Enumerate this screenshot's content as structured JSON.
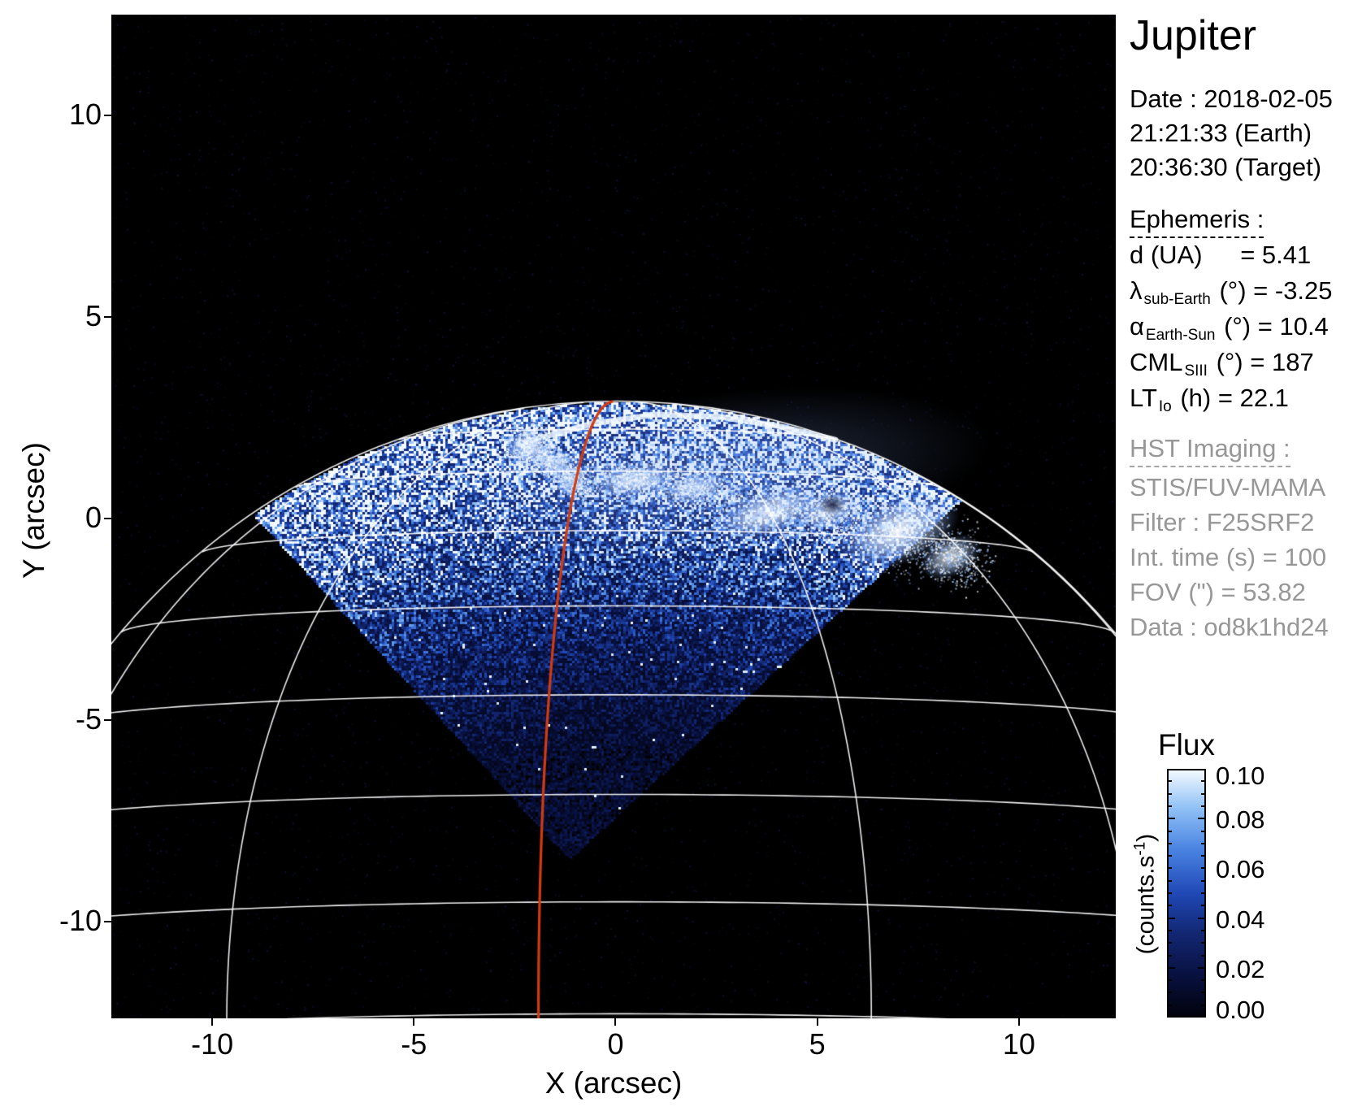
{
  "panel": {
    "title": "Jupiter",
    "date_lines": [
      "Date : 2018-02-05",
      "21:21:33 (Earth)",
      "20:36:30 (Target)"
    ],
    "ephemeris": {
      "heading": "Ephemeris :",
      "rows": [
        {
          "symbol": "d",
          "subscript": "",
          "unit": "(UA)",
          "value": "= 5.41",
          "wide": true
        },
        {
          "symbol": "λ",
          "subscript": "sub-Earth",
          "unit": "(°)",
          "value": "= -3.25",
          "wide": false
        },
        {
          "symbol": "α",
          "subscript": "Earth-Sun",
          "unit": "(°)",
          "value": "= 10.4",
          "wide": false
        },
        {
          "symbol": "CML",
          "subscript": "SIII",
          "unit": "(°)",
          "value": "= 187",
          "wide": false
        },
        {
          "symbol": "LT",
          "subscript": "Io",
          "unit": "(h)",
          "value": "= 22.1",
          "wide": false
        }
      ]
    },
    "hst": {
      "heading": "HST Imaging :",
      "lines": [
        "STIS/FUV-MAMA",
        "Filter : F25SRF2",
        "Int. time (s) = 100",
        "FOV (\") = 53.82",
        "Data : od8k1hd24"
      ],
      "text_color": "#979797"
    }
  },
  "chart_data": {
    "type": "heatmap",
    "title": "Jupiter",
    "xlabel": "X (arcsec)",
    "ylabel": "Y (arcsec)",
    "xlim": [
      -12.5,
      12.4
    ],
    "ylim": [
      -12.4,
      12.5
    ],
    "x_tick_values": [
      -10,
      -5,
      0,
      5,
      10
    ],
    "x_tick_labels": [
      "-10",
      "-5",
      "0",
      "5",
      "10"
    ],
    "y_tick_values": [
      10,
      5,
      0,
      -5,
      -10
    ],
    "y_tick_labels": [
      "10",
      "5",
      "0",
      "-5",
      "-10"
    ],
    "grid": false,
    "colorbar": {
      "title": "Flux",
      "unit_prefix": "(counts.s",
      "unit_sup": "-1",
      "unit_suffix": ")",
      "range": [
        0.0,
        0.1
      ],
      "tick_values": [
        0.1,
        0.08,
        0.06,
        0.04,
        0.02,
        0.0
      ],
      "tick_labels": [
        "0.10",
        "0.08",
        "0.06",
        "0.04",
        "0.02",
        "0.00"
      ],
      "colormap_stops": [
        {
          "p": 0.0,
          "c": [
            2,
            3,
            12
          ]
        },
        {
          "p": 0.16,
          "c": [
            8,
            16,
            62
          ]
        },
        {
          "p": 0.33,
          "c": [
            18,
            38,
            112
          ]
        },
        {
          "p": 0.5,
          "c": [
            32,
            72,
            182
          ]
        },
        {
          "p": 0.68,
          "c": [
            74,
            132,
            226
          ]
        },
        {
          "p": 0.85,
          "c": [
            146,
            194,
            246
          ]
        },
        {
          "p": 1.0,
          "c": [
            242,
            249,
            255
          ]
        }
      ]
    },
    "scene": {
      "description": "HST STIS FUV image of Jupiter northern aurora: diamond-shaped detector footprint of blue speckled disk emission bounded by the planet limb, bright white auroral oval near the pole, white planetocentric graticule, red-orange 180-deg SIII meridian",
      "planet": {
        "x": 0.05,
        "y": -13.2,
        "r": 16.1,
        "sub_obs_lat_deg": -3.25
      },
      "fov_diamond": [
        [
          -9.36,
          0.5
        ],
        [
          0.5,
          9.7
        ],
        [
          8.69,
          0.6
        ],
        [
          -1.17,
          -8.45
        ]
      ],
      "latitudes_deg": [
        0,
        10,
        20,
        30,
        40,
        50,
        60,
        70
      ],
      "meridians_deg": [
        -97,
        -67,
        -37,
        23,
        53,
        83
      ],
      "red_meridian_deg": -7,
      "red_line_color": "#d23b10",
      "graticule_color": "#ffffff",
      "aurora_spine": [
        [
          -2.4,
          1.85
        ],
        [
          -0.6,
          2.35
        ],
        [
          1.0,
          2.58
        ],
        [
          2.6,
          2.52
        ],
        [
          4.1,
          2.28
        ],
        [
          5.45,
          1.95
        ]
      ],
      "aurora_blobs": [
        {
          "x": -2.17,
          "y": 1.75,
          "rx": 0.55,
          "ry": 0.5,
          "rot": 0,
          "i": 1.0
        },
        {
          "x": -1.5,
          "y": 1.35,
          "rx": 0.45,
          "ry": 0.3,
          "rot": -30,
          "i": 0.8
        },
        {
          "x": -1.05,
          "y": 0.95,
          "rx": 0.4,
          "ry": 0.28,
          "rot": -35,
          "i": 0.7
        },
        {
          "x": 0.45,
          "y": 0.95,
          "rx": 1.05,
          "ry": 0.42,
          "rot": -6,
          "i": 1.0
        },
        {
          "x": 1.95,
          "y": 0.75,
          "rx": 0.85,
          "ry": 0.35,
          "rot": -10,
          "i": 0.85
        },
        {
          "x": 3.8,
          "y": 0.15,
          "rx": 1.5,
          "ry": 0.6,
          "rot": -16,
          "i": 0.9
        },
        {
          "x": 5.3,
          "y": 0.2,
          "rx": 0.9,
          "ry": 0.5,
          "rot": -18,
          "i": 0.8
        },
        {
          "x": 7.0,
          "y": -0.3,
          "rx": 1.6,
          "ry": 0.85,
          "rot": -20,
          "i": 1.0
        },
        {
          "x": 8.3,
          "y": -0.95,
          "rx": 0.8,
          "ry": 0.5,
          "rot": -25,
          "i": 0.85
        }
      ],
      "aurora_dark_hole": {
        "x": 5.37,
        "y": 0.34,
        "r": 0.33
      },
      "aurora_diffuse_glow": {
        "x": 2.5,
        "y": 1.1,
        "rx": 6.8,
        "ry": 2.0,
        "rot": -7,
        "alpha": 0.3
      }
    }
  }
}
